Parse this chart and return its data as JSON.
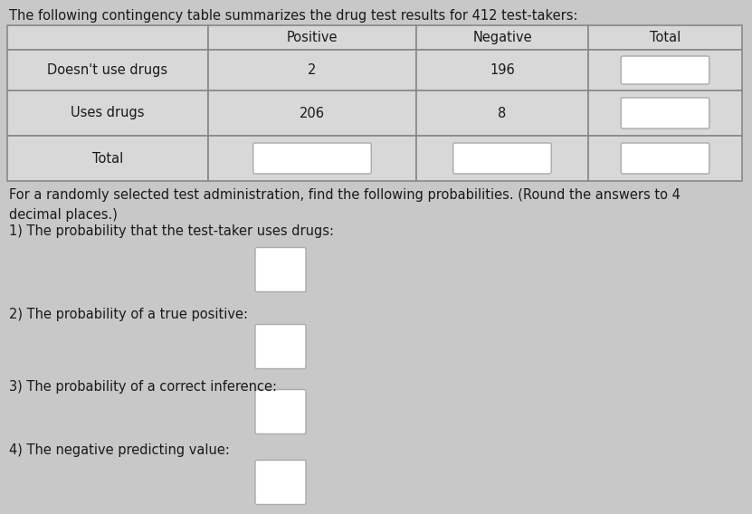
{
  "title": "The following contingency table summarizes the drug test results for 412 test-takers:",
  "col_headers": [
    "",
    "Positive",
    "Negative",
    "Total"
  ],
  "row1_label": "Doesn't use drugs",
  "row2_label": "Uses drugs",
  "row3_label": "Total",
  "cell_positive_row1": "2",
  "cell_negative_row1": "196",
  "cell_positive_row2": "206",
  "cell_negative_row2": "8",
  "instruction_text": "For a randomly selected test administration, find the following probabilities. (Round the answers to 4\ndecimal places.)",
  "q1": "1) The probability that the test-taker uses drugs:",
  "q2": "2) The probability of a true positive:",
  "q3": "3) The probability of a correct inference:",
  "q4": "4) The negative predicting value:",
  "bg_color": "#c8c8c8",
  "table_cell_bg": "#d8d8d8",
  "table_border_color": "#888888",
  "blank_box_fill": "#e8e8e8",
  "blank_box_border": "#aaaaaa",
  "answer_box_fill": "#e8e8e8",
  "answer_box_border": "#aaaaaa",
  "font_color": "#1a1a1a",
  "title_fontsize": 10.5,
  "table_fontsize": 10.5,
  "body_fontsize": 10.5
}
